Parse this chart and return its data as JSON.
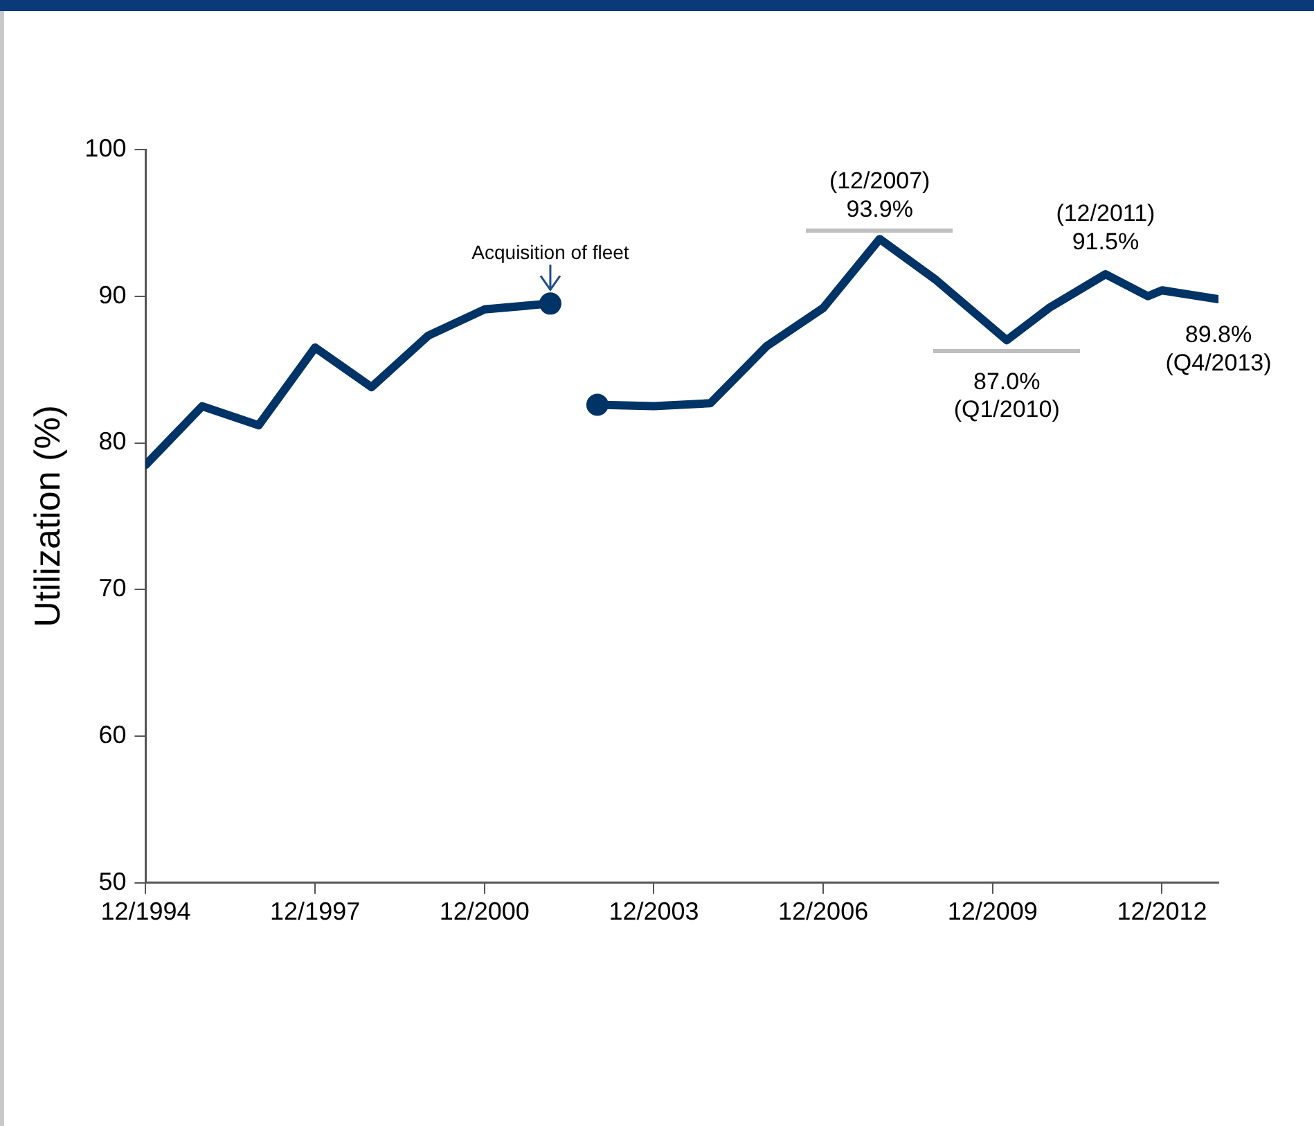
{
  "chart_data": {
    "type": "line",
    "ylabel": "Utilization (%)",
    "xlim": [
      "1994-12",
      "2013-12"
    ],
    "xticks": [
      {
        "value": "1994-12",
        "label": "12/1994"
      },
      {
        "value": "1997-12",
        "label": "12/1997"
      },
      {
        "value": "2000-12",
        "label": "12/2000"
      },
      {
        "value": "2003-12",
        "label": "12/2003"
      },
      {
        "value": "2006-12",
        "label": "12/2006"
      },
      {
        "value": "2009-12",
        "label": "12/2009"
      },
      {
        "value": "2012-12",
        "label": "12/2012"
      }
    ],
    "ylim": [
      50,
      100
    ],
    "yticks": [
      50,
      60,
      70,
      80,
      90,
      100
    ],
    "grid": false,
    "legend": false,
    "series": [
      {
        "color": "#003366",
        "x": [
          "1994-12",
          "1995-12",
          "1996-12",
          "1997-12",
          "1998-12",
          "1999-12",
          "2000-12",
          "2002-02"
        ],
        "values": [
          78.5,
          82.5,
          81.2,
          86.5,
          83.8,
          87.3,
          89.1,
          89.5
        ]
      },
      {
        "color": "#003366",
        "x": [
          "2002-12",
          "2003-12",
          "2004-12",
          "2005-12",
          "2006-12",
          "2007-12",
          "2008-12",
          "2010-03",
          "2010-12",
          "2011-12",
          "2012-09",
          "2012-12",
          "2013-12"
        ],
        "values": [
          82.6,
          82.5,
          82.7,
          86.6,
          89.2,
          93.9,
          91.1,
          87.0,
          89.2,
          91.5,
          90.0,
          90.4,
          89.8
        ]
      },
      {
        "type": "scatter",
        "marker": "circle",
        "color": "#003366",
        "x": [
          "2002-02",
          "2002-12"
        ],
        "values": [
          89.5,
          82.6
        ]
      }
    ],
    "annotations": [
      {
        "text": "Acquisition of fleet",
        "x": "2002-02",
        "y": 89.5
      },
      {
        "text": "(12/2007)\n93.9%",
        "x": "2007-12",
        "y": 93.9
      },
      {
        "text": "87.0%\n(Q1/2010)",
        "x": "2010-03",
        "y": 87.0
      },
      {
        "text": "(12/2011)\n91.5%",
        "x": "2011-12",
        "y": 91.5
      },
      {
        "text": "89.8%\n(Q4/2013)",
        "x": "2013-12",
        "y": 89.8
      }
    ]
  }
}
